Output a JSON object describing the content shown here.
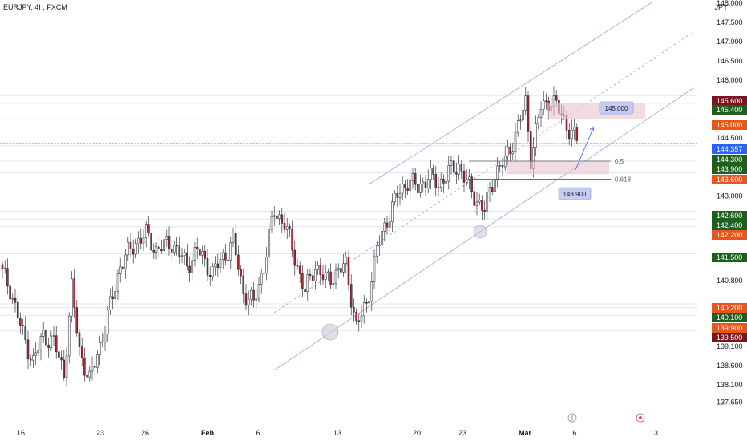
{
  "header": {
    "symbol_line": "EURJPY, 4h, FXCM",
    "currency": "JPY"
  },
  "colors": {
    "up": "#ffffff",
    "down": "#b22833",
    "wick": "#131722",
    "channel": "#9aa6e8",
    "hline": "#e4e6ef",
    "badge_green": "#1e5f1e",
    "badge_orange": "#e8561b",
    "badge_maroon": "#7a1420",
    "badge_blue": "#2962ff",
    "zone": "#e7c6cb",
    "note": "#c6ccf3"
  },
  "chart_data": {
    "type": "candlestick",
    "y_ticks": [
      "148.000",
      "147.500",
      "147.000",
      "146.500",
      "146.000",
      "144.500",
      "143.000",
      "140.800",
      "139.100",
      "138.600",
      "138.100",
      "137.650"
    ],
    "y_axis_values": [
      148.0,
      147.5,
      147.0,
      146.5,
      146.0,
      144.5,
      143.0,
      140.8,
      139.1,
      138.6,
      138.1,
      137.65
    ],
    "x_ticks": [
      "16",
      "23",
      "26",
      "Feb",
      "6",
      "13",
      "20",
      "23",
      "Mar",
      "6",
      "13"
    ],
    "price_badges": [
      {
        "label": "145.600",
        "color": "badge_maroon"
      },
      {
        "label": "145.400",
        "color": "badge_green"
      },
      {
        "label": "145.000",
        "color": "badge_orange"
      },
      {
        "label": "144.357",
        "color": "badge_blue"
      },
      {
        "label": "144.300",
        "color": "badge_green"
      },
      {
        "label": "143.900",
        "color": "badge_green"
      },
      {
        "label": "143.600",
        "color": "badge_orange"
      },
      {
        "label": "142.600",
        "color": "badge_green"
      },
      {
        "label": "142.400",
        "color": "badge_green"
      },
      {
        "label": "142.200",
        "color": "badge_orange"
      },
      {
        "label": "141.500",
        "color": "badge_green"
      },
      {
        "label": "140.200",
        "color": "badge_orange"
      },
      {
        "label": "140.100",
        "color": "badge_green"
      },
      {
        "label": "139.900",
        "color": "badge_orange"
      },
      {
        "label": "139.500",
        "color": "badge_maroon"
      }
    ],
    "fib_levels": [
      {
        "label": "0.5",
        "price": 143.9
      },
      {
        "label": "0.618",
        "price": 143.6
      }
    ],
    "annotations": [
      {
        "label": "145.000",
        "kind": "target"
      },
      {
        "label": "143.900",
        "kind": "entry"
      }
    ],
    "last_price": 144.357,
    "anchors": [
      {
        "i": 0,
        "p": 141.0
      },
      {
        "i": 3,
        "p": 140.6
      },
      {
        "i": 8,
        "p": 139.4
      },
      {
        "i": 12,
        "p": 138.7
      },
      {
        "i": 16,
        "p": 139.4
      },
      {
        "i": 20,
        "p": 139.2
      },
      {
        "i": 24,
        "p": 138.4
      },
      {
        "i": 27,
        "p": 140.6
      },
      {
        "i": 30,
        "p": 139.0
      },
      {
        "i": 34,
        "p": 138.2
      },
      {
        "i": 40,
        "p": 139.6
      },
      {
        "i": 46,
        "p": 141.2
      },
      {
        "i": 52,
        "p": 141.8
      },
      {
        "i": 56,
        "p": 142.0
      },
      {
        "i": 60,
        "p": 141.6
      },
      {
        "i": 66,
        "p": 141.8
      },
      {
        "i": 72,
        "p": 141.2
      },
      {
        "i": 76,
        "p": 141.6
      },
      {
        "i": 82,
        "p": 141.0
      },
      {
        "i": 86,
        "p": 141.4
      },
      {
        "i": 90,
        "p": 141.8
      },
      {
        "i": 94,
        "p": 140.5
      },
      {
        "i": 98,
        "p": 140.2
      },
      {
        "i": 102,
        "p": 141.2
      },
      {
        "i": 106,
        "p": 142.6
      },
      {
        "i": 110,
        "p": 142.3
      },
      {
        "i": 114,
        "p": 141.4
      },
      {
        "i": 118,
        "p": 140.5
      },
      {
        "i": 122,
        "p": 141.2
      },
      {
        "i": 126,
        "p": 140.8
      },
      {
        "i": 130,
        "p": 141.0
      },
      {
        "i": 134,
        "p": 141.2
      },
      {
        "i": 138,
        "p": 139.6
      },
      {
        "i": 142,
        "p": 140.2
      },
      {
        "i": 146,
        "p": 141.6
      },
      {
        "i": 150,
        "p": 142.4
      },
      {
        "i": 154,
        "p": 143.0
      },
      {
        "i": 158,
        "p": 143.4
      },
      {
        "i": 162,
        "p": 143.2
      },
      {
        "i": 166,
        "p": 143.5
      },
      {
        "i": 170,
        "p": 143.3
      },
      {
        "i": 174,
        "p": 143.6
      },
      {
        "i": 178,
        "p": 143.8
      },
      {
        "i": 182,
        "p": 143.2
      },
      {
        "i": 186,
        "p": 142.8
      },
      {
        "i": 188,
        "p": 142.6
      },
      {
        "i": 192,
        "p": 143.6
      },
      {
        "i": 196,
        "p": 143.9
      },
      {
        "i": 200,
        "p": 144.6
      },
      {
        "i": 204,
        "p": 145.4
      },
      {
        "i": 206,
        "p": 144.0
      },
      {
        "i": 210,
        "p": 145.3
      },
      {
        "i": 214,
        "p": 145.5
      },
      {
        "i": 218,
        "p": 145.1
      },
      {
        "i": 222,
        "p": 144.6
      },
      {
        "i": 225,
        "p": 144.36
      }
    ]
  }
}
